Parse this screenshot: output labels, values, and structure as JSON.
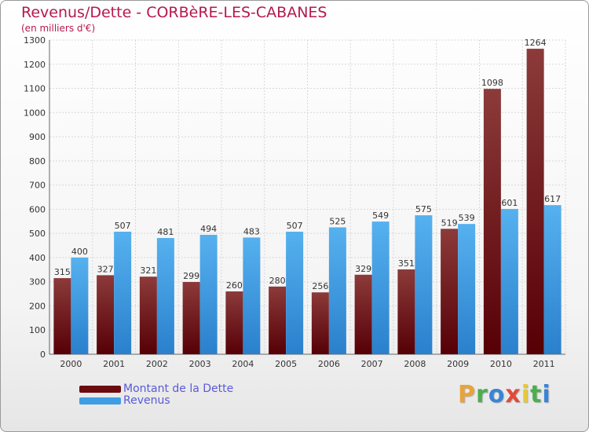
{
  "title": "Revenus/Dette - CORBèRE-LES-CABANES",
  "subtitle": "(en milliers d'€)",
  "colors": {
    "dette": "#6b0a0f",
    "revenus": "#3e9de3",
    "title": "#b5184e",
    "legend_text": "#5a5ad8"
  },
  "legend": {
    "dette_label": "Montant de la Dette",
    "revenus_label": "Revenus"
  },
  "logo": {
    "letters": [
      {
        "char": "P",
        "color": "#e8a33a"
      },
      {
        "char": "r",
        "color": "#4cae4c"
      },
      {
        "char": "o",
        "color": "#3a84d6"
      },
      {
        "char": "x",
        "color": "#e04a3c"
      },
      {
        "char": "i",
        "color": "#e8c83a"
      },
      {
        "char": "t",
        "color": "#4cae4c"
      },
      {
        "char": "i",
        "color": "#3a84d6"
      }
    ]
  },
  "chart_data": {
    "type": "bar",
    "categories": [
      "2000",
      "2001",
      "2002",
      "2003",
      "2004",
      "2005",
      "2006",
      "2007",
      "2008",
      "2009",
      "2010",
      "2011"
    ],
    "series": [
      {
        "name": "Montant de la Dette",
        "values": [
          315,
          327,
          321,
          299,
          260,
          280,
          256,
          329,
          351,
          519,
          1098,
          1264
        ]
      },
      {
        "name": "Revenus",
        "values": [
          400,
          507,
          481,
          494,
          483,
          507,
          525,
          549,
          575,
          539,
          601,
          617
        ]
      }
    ],
    "ylim": [
      0,
      1300
    ],
    "yticks": [
      0,
      100,
      200,
      300,
      400,
      500,
      600,
      700,
      800,
      900,
      1000,
      1100,
      1200,
      1300
    ],
    "grid": true
  }
}
